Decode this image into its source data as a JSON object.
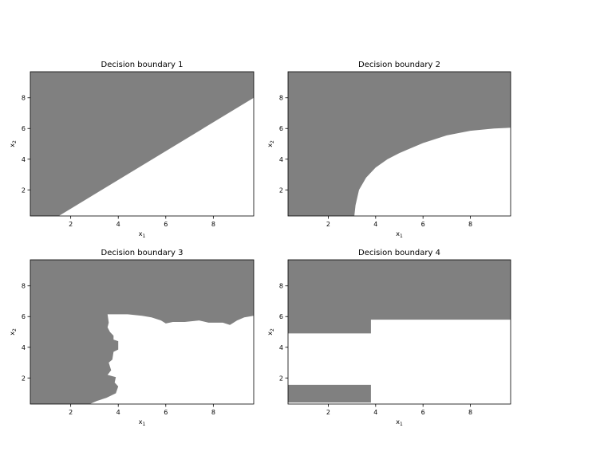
{
  "colors": {
    "region": "#808080",
    "background": "#ffffff",
    "axis": "#000000"
  },
  "chart_data": [
    {
      "type": "area",
      "title": "Decision boundary 1",
      "xlabel": "x_1",
      "ylabel": "x_2",
      "xlim": [
        0.3,
        9.7
      ],
      "ylim": [
        0.3,
        9.7
      ],
      "xticks": [
        2,
        4,
        6,
        8
      ],
      "yticks": [
        2,
        4,
        6,
        8
      ],
      "grid": false,
      "region_polygon": [
        [
          0.3,
          9.7
        ],
        [
          9.7,
          9.7
        ],
        [
          9.7,
          8.0
        ],
        [
          1.5,
          0.3
        ],
        [
          0.3,
          0.3
        ]
      ]
    },
    {
      "type": "area",
      "title": "Decision boundary 2",
      "xlabel": "x_1",
      "ylabel": "x_2",
      "xlim": [
        0.3,
        9.7
      ],
      "ylim": [
        0.3,
        9.7
      ],
      "xticks": [
        2,
        4,
        6,
        8
      ],
      "yticks": [
        2,
        4,
        6,
        8
      ],
      "grid": false,
      "region_polygon": [
        [
          0.3,
          9.7
        ],
        [
          9.7,
          9.7
        ],
        [
          9.7,
          6.05
        ],
        [
          9.0,
          6.0
        ],
        [
          8.0,
          5.85
        ],
        [
          7.0,
          5.55
        ],
        [
          6.0,
          5.05
        ],
        [
          5.0,
          4.4
        ],
        [
          4.5,
          4.0
        ],
        [
          4.0,
          3.45
        ],
        [
          3.6,
          2.8
        ],
        [
          3.3,
          2.0
        ],
        [
          3.15,
          1.0
        ],
        [
          3.1,
          0.3
        ],
        [
          0.3,
          0.3
        ]
      ]
    },
    {
      "type": "area",
      "title": "Decision boundary 3",
      "xlabel": "x_1",
      "ylabel": "x_2",
      "xlim": [
        0.3,
        9.7
      ],
      "ylim": [
        0.3,
        9.7
      ],
      "xticks": [
        2,
        4,
        6,
        8
      ],
      "yticks": [
        2,
        4,
        6,
        8
      ],
      "grid": false,
      "region_polygon": [
        [
          0.3,
          9.7
        ],
        [
          9.7,
          9.7
        ],
        [
          9.7,
          6.05
        ],
        [
          9.3,
          5.95
        ],
        [
          9.0,
          5.75
        ],
        [
          8.7,
          5.45
        ],
        [
          8.4,
          5.6
        ],
        [
          7.8,
          5.6
        ],
        [
          7.4,
          5.75
        ],
        [
          6.8,
          5.65
        ],
        [
          6.3,
          5.65
        ],
        [
          6.0,
          5.55
        ],
        [
          5.8,
          5.75
        ],
        [
          5.4,
          5.95
        ],
        [
          5.0,
          6.05
        ],
        [
          4.4,
          6.15
        ],
        [
          3.55,
          6.15
        ],
        [
          3.6,
          5.6
        ],
        [
          3.55,
          5.3
        ],
        [
          3.65,
          5.0
        ],
        [
          3.8,
          4.75
        ],
        [
          3.8,
          4.5
        ],
        [
          4.0,
          4.4
        ],
        [
          4.0,
          3.85
        ],
        [
          3.8,
          3.7
        ],
        [
          3.75,
          3.2
        ],
        [
          3.6,
          3.0
        ],
        [
          3.7,
          2.5
        ],
        [
          3.55,
          2.2
        ],
        [
          3.9,
          2.05
        ],
        [
          3.85,
          1.7
        ],
        [
          4.0,
          1.45
        ],
        [
          3.9,
          1.0
        ],
        [
          3.5,
          0.7
        ],
        [
          3.1,
          0.5
        ],
        [
          2.8,
          0.3
        ],
        [
          0.3,
          0.3
        ]
      ]
    },
    {
      "type": "area",
      "title": "Decision boundary 4",
      "xlabel": "x_1",
      "ylabel": "x_2",
      "xlim": [
        0.3,
        9.7
      ],
      "ylim": [
        0.3,
        9.7
      ],
      "xticks": [
        2,
        4,
        6,
        8
      ],
      "yticks": [
        2,
        4,
        6,
        8
      ],
      "grid": false,
      "regions": [
        [
          [
            0.3,
            9.7
          ],
          [
            9.7,
            9.7
          ],
          [
            9.7,
            5.8
          ],
          [
            3.8,
            5.8
          ],
          [
            3.8,
            4.9
          ],
          [
            0.3,
            4.9
          ]
        ],
        [
          [
            0.3,
            1.55
          ],
          [
            3.8,
            1.55
          ],
          [
            3.8,
            0.4
          ],
          [
            0.3,
            0.4
          ]
        ]
      ]
    }
  ]
}
